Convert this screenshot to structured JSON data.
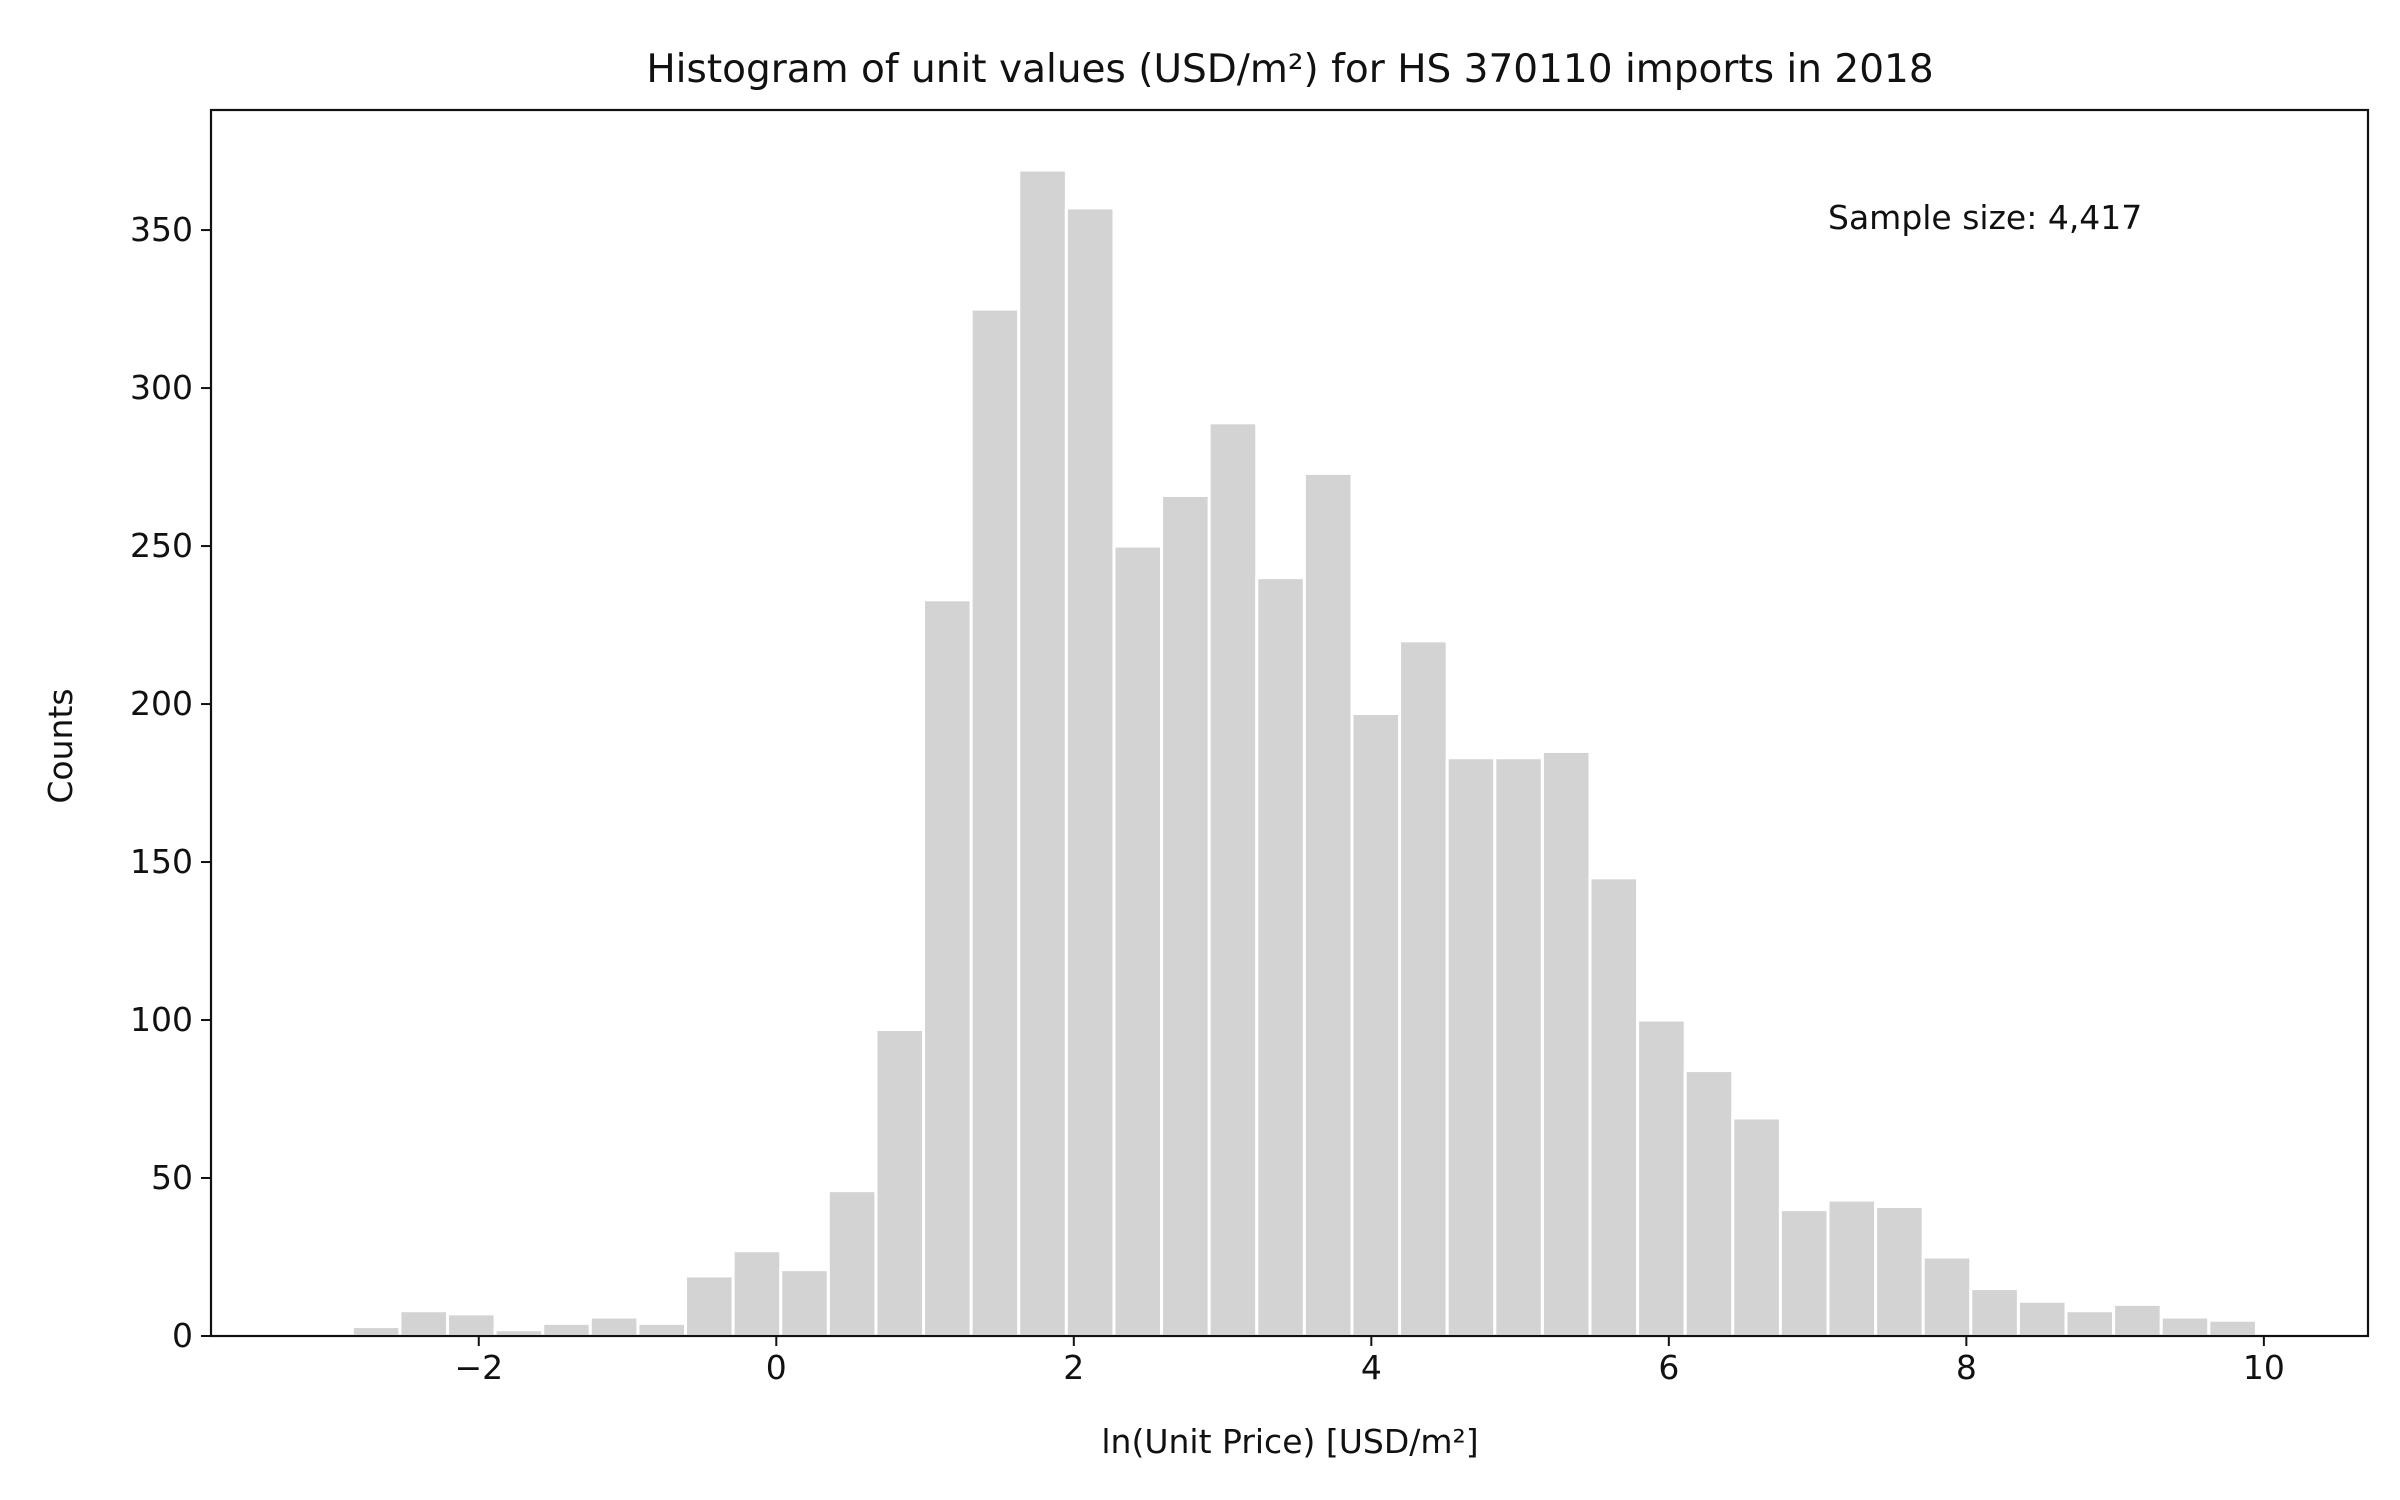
{
  "chart_data": {
    "type": "bar",
    "title": "Histogram of unit values (USD/m²) for HS 370110 imports in 2018",
    "xlabel": "ln(Unit Price) [USD/m²]",
    "ylabel": "Counts",
    "annotation": "Sample size: 4,417",
    "xlim": [
      -3.8,
      10.7
    ],
    "ylim": [
      0,
      388
    ],
    "grid": false,
    "xticks": [
      -2,
      0,
      2,
      4,
      6,
      8,
      10
    ],
    "xtick_labels": [
      "−2",
      "0",
      "2",
      "4",
      "6",
      "8",
      "10"
    ],
    "yticks": [
      0,
      50,
      100,
      150,
      200,
      250,
      300,
      350
    ],
    "ytick_labels": [
      "0",
      "50",
      "100",
      "150",
      "200",
      "250",
      "300",
      "350"
    ],
    "bar_color": "#d3d3d3",
    "bar_edge_color": "#ffffff",
    "bin_edges": [
      -2.85,
      -2.53,
      -2.21,
      -1.89,
      -1.57,
      -1.25,
      -0.93,
      -0.61,
      -0.29,
      0.03,
      0.35,
      0.67,
      0.99,
      1.31,
      1.63,
      1.95,
      2.27,
      2.59,
      2.91,
      3.23,
      3.55,
      3.87,
      4.19,
      4.51,
      4.83,
      5.15,
      5.47,
      5.79,
      6.11,
      6.43,
      6.75,
      7.07,
      7.39,
      7.71,
      8.03,
      8.35,
      8.67,
      8.99,
      9.31,
      9.63,
      9.95,
      10.27
    ],
    "values": [
      3,
      8,
      7,
      2,
      4,
      6,
      4,
      19,
      27,
      21,
      46,
      97,
      233,
      325,
      369,
      357,
      250,
      266,
      289,
      240,
      273,
      197,
      220,
      183,
      183,
      185,
      145,
      100,
      84,
      69,
      40,
      43,
      41,
      25,
      15,
      11,
      8,
      10,
      6,
      5,
      0
    ]
  }
}
